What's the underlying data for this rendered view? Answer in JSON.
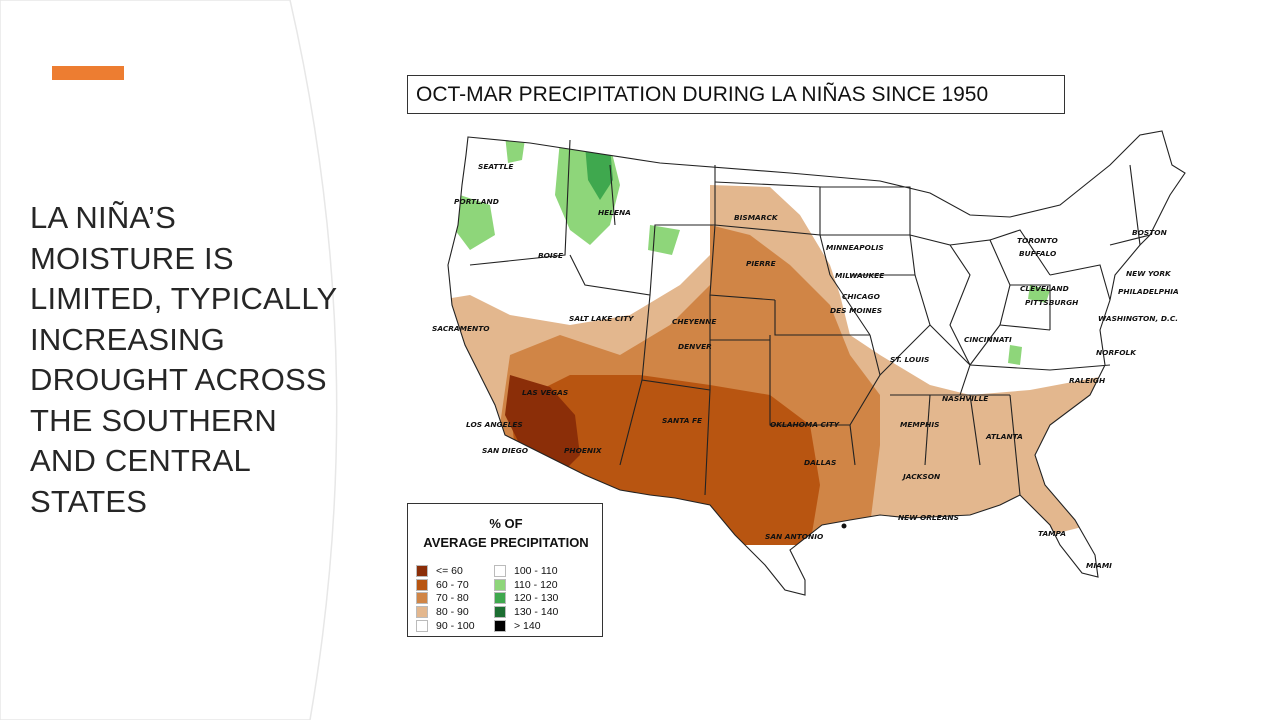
{
  "slide": {
    "accent_color": "#ED7D31",
    "heading_lines": [
      "LA NIÑA’S",
      "MOISTURE IS",
      "LIMITED, TYPICALLY",
      "INCREASING",
      "DROUGHT ACROSS",
      "THE SOUTHERN",
      "AND CENTRAL",
      "STATES"
    ]
  },
  "map": {
    "title": "OCT-MAR PRECIPITATION DURING LA NIÑAS SINCE 1950",
    "cities": [
      {
        "name": "SEATTLE"
      },
      {
        "name": "PORTLAND"
      },
      {
        "name": "HELENA"
      },
      {
        "name": "BOISE"
      },
      {
        "name": "BISMARCK"
      },
      {
        "name": "PIERRE"
      },
      {
        "name": "MINNEAPOLIS"
      },
      {
        "name": "MILWAUKEE"
      },
      {
        "name": "CHICAGO"
      },
      {
        "name": "TORONTO"
      },
      {
        "name": "BUFFALO"
      },
      {
        "name": "BOSTON"
      },
      {
        "name": "NEW YORK"
      },
      {
        "name": "PHILADELPHIA"
      },
      {
        "name": "WASHINGTON, D.C."
      },
      {
        "name": "CLEVELAND"
      },
      {
        "name": "PITTSBURGH"
      },
      {
        "name": "DES MOINES"
      },
      {
        "name": "CINCINNATI"
      },
      {
        "name": "NORFOLK"
      },
      {
        "name": "SACRAMENTO"
      },
      {
        "name": "SALT LAKE CITY"
      },
      {
        "name": "CHEYENNE"
      },
      {
        "name": "DENVER"
      },
      {
        "name": "ST. LOUIS"
      },
      {
        "name": "RALEIGH"
      },
      {
        "name": "LAS VEGAS"
      },
      {
        "name": "NASHVILLE"
      },
      {
        "name": "LOS ANGELES"
      },
      {
        "name": "SANTA FE"
      },
      {
        "name": "OKLAHOMA CITY"
      },
      {
        "name": "MEMPHIS"
      },
      {
        "name": "ATLANTA"
      },
      {
        "name": "SAN DIEGO"
      },
      {
        "name": "PHOENIX"
      },
      {
        "name": "DALLAS"
      },
      {
        "name": "JACKSON"
      },
      {
        "name": "NEW ORLEANS"
      },
      {
        "name": "SAN ANTONIO"
      },
      {
        "name": "TAMPA"
      },
      {
        "name": "MIAMI"
      }
    ],
    "colors": {
      "le60": "#8B2E08",
      "c60_70": "#B85511",
      "c70_80": "#D08546",
      "c80_90": "#E3B78E",
      "c90_100": "#FFFFFF",
      "c100_110": "#FFFFFF",
      "c110_120": "#8ED67A",
      "c120_130": "#3FA84E",
      "c130_140": "#1C6E32",
      "gt140": "#000000"
    }
  },
  "legend": {
    "title_line1": "% OF",
    "title_line2": "AVERAGE PRECIPITATION",
    "col1": [
      {
        "label": "<= 60",
        "color": "#8B2E08"
      },
      {
        "label": "60 - 70",
        "color": "#B85511"
      },
      {
        "label": "70 - 80",
        "color": "#D08546"
      },
      {
        "label": "80 - 90",
        "color": "#E3B78E"
      },
      {
        "label": "90 - 100",
        "color": "#FFFFFF"
      }
    ],
    "col2": [
      {
        "label": "100 - 110",
        "color": "#FFFFFF"
      },
      {
        "label": "110 - 120",
        "color": "#8ED67A"
      },
      {
        "label": "120 - 130",
        "color": "#3FA84E"
      },
      {
        "label": "130 - 140",
        "color": "#1C6E32"
      },
      {
        "label": "> 140",
        "color": "#000000"
      }
    ]
  }
}
